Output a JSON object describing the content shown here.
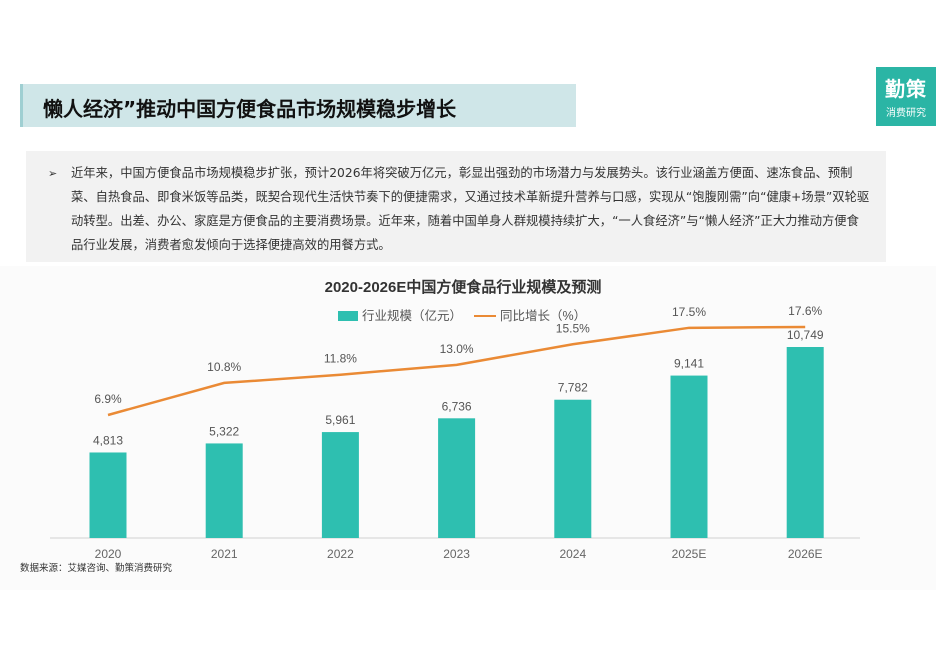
{
  "header": {
    "title": "懒人经济”推动中国方便食品市场规模稳步增长"
  },
  "brand": {
    "name": "勤策",
    "subtitle": "消费研究"
  },
  "summary": {
    "bullet": "➢",
    "text": "近年来，中国方便食品市场规模稳步扩张，预计2026年将突破万亿元，彰显出强劲的市场潜力与发展势头。该行业涵盖方便面、速冻食品、预制菜、自热食品、即食米饭等品类，既契合现代生活快节奏下的便捷需求，又通过技术革新提升营养与口感，实现从“饱腹刚需”向“健康+场景”双轮驱动转型。出差、办公、家庭是方便食品的主要消费场景。近年来，随着中国单身人群规模持续扩大，“一人食经济”与“懒人经济”正大力推动方便食品行业发展，消费者愈发倾向于选择便捷高效的用餐方式。"
  },
  "source": "数据来源：艾媒咨询、勤策消费研究",
  "chart_data": {
    "type": "bar",
    "title": "2020-2026E中国方便食品行业规模及预测",
    "categories": [
      "2020",
      "2021",
      "2022",
      "2023",
      "2024",
      "2025E",
      "2026E"
    ],
    "series": [
      {
        "name": "行业规模（亿元）",
        "type": "bar",
        "values": [
          4813,
          5322,
          5961,
          6736,
          7782,
          9141,
          10749
        ],
        "labels": [
          "4,813",
          "5,322",
          "5,961",
          "6,736",
          "7,782",
          "9,141",
          "10,749"
        ],
        "color": "#2ebfb0"
      },
      {
        "name": "同比增长（%）",
        "type": "line",
        "values": [
          6.9,
          10.8,
          11.8,
          13.0,
          15.5,
          17.5,
          17.6
        ],
        "labels": [
          "6.9%",
          "10.8%",
          "11.8%",
          "13.0%",
          "15.5%",
          "17.5%",
          "17.6%"
        ],
        "color": "#ea8a35"
      }
    ],
    "legend": "top-center",
    "grid": false
  }
}
